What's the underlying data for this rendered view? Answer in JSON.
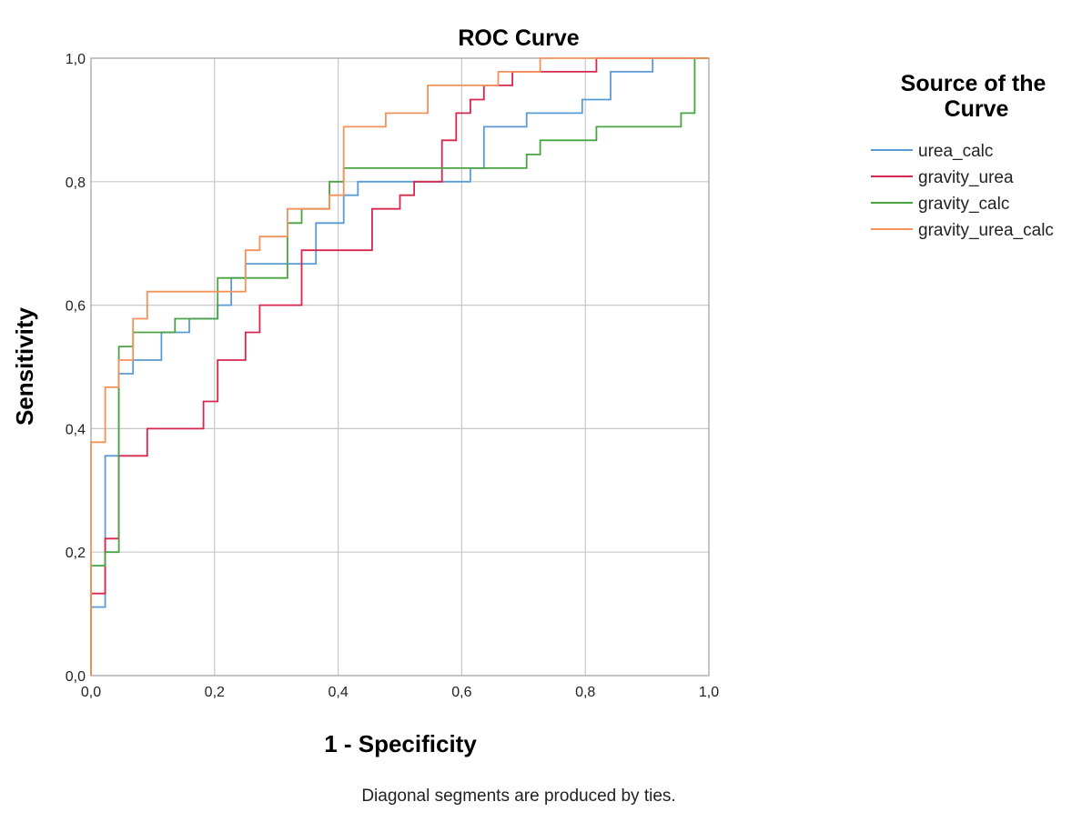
{
  "chart_data": {
    "type": "line",
    "title": "ROC Curve",
    "xlabel": "1 - Specificity",
    "ylabel": "Sensitivity",
    "xlim": [
      0,
      1
    ],
    "ylim": [
      0,
      1
    ],
    "xticks": [
      "0,0",
      "0,2",
      "0,4",
      "0,6",
      "0,8",
      "1,0"
    ],
    "yticks": [
      "0,0",
      "0,2",
      "0,4",
      "0,6",
      "0,8",
      "1,0"
    ],
    "grid": true,
    "legend_title": "Source of the Curve",
    "legend_position": "right",
    "footnote": "Diagonal segments are produced by ties.",
    "series": [
      {
        "name": "urea_calc",
        "color": "#5b9bd5",
        "points": [
          [
            0,
            0
          ],
          [
            0,
            0.111
          ],
          [
            0.023,
            0.111
          ],
          [
            0.023,
            0.356
          ],
          [
            0.045,
            0.356
          ],
          [
            0.045,
            0.489
          ],
          [
            0.068,
            0.489
          ],
          [
            0.068,
            0.511
          ],
          [
            0.114,
            0.511
          ],
          [
            0.114,
            0.556
          ],
          [
            0.159,
            0.556
          ],
          [
            0.159,
            0.578
          ],
          [
            0.205,
            0.578
          ],
          [
            0.205,
            0.6
          ],
          [
            0.227,
            0.6
          ],
          [
            0.227,
            0.644
          ],
          [
            0.25,
            0.644
          ],
          [
            0.25,
            0.667
          ],
          [
            0.364,
            0.667
          ],
          [
            0.364,
            0.733
          ],
          [
            0.409,
            0.733
          ],
          [
            0.409,
            0.778
          ],
          [
            0.432,
            0.778
          ],
          [
            0.432,
            0.8
          ],
          [
            0.614,
            0.8
          ],
          [
            0.614,
            0.822
          ],
          [
            0.636,
            0.822
          ],
          [
            0.636,
            0.889
          ],
          [
            0.705,
            0.889
          ],
          [
            0.705,
            0.911
          ],
          [
            0.795,
            0.911
          ],
          [
            0.795,
            0.933
          ],
          [
            0.841,
            0.933
          ],
          [
            0.841,
            0.978
          ],
          [
            0.909,
            0.978
          ],
          [
            0.909,
            1.0
          ],
          [
            1.0,
            1.0
          ]
        ]
      },
      {
        "name": "gravity_urea",
        "color": "#d6284d",
        "points": [
          [
            0,
            0
          ],
          [
            0,
            0.133
          ],
          [
            0.023,
            0.133
          ],
          [
            0.023,
            0.222
          ],
          [
            0.045,
            0.222
          ],
          [
            0.045,
            0.356
          ],
          [
            0.091,
            0.356
          ],
          [
            0.091,
            0.4
          ],
          [
            0.182,
            0.4
          ],
          [
            0.182,
            0.444
          ],
          [
            0.205,
            0.444
          ],
          [
            0.205,
            0.511
          ],
          [
            0.25,
            0.511
          ],
          [
            0.25,
            0.556
          ],
          [
            0.273,
            0.556
          ],
          [
            0.273,
            0.6
          ],
          [
            0.341,
            0.6
          ],
          [
            0.341,
            0.689
          ],
          [
            0.455,
            0.689
          ],
          [
            0.455,
            0.756
          ],
          [
            0.5,
            0.756
          ],
          [
            0.5,
            0.778
          ],
          [
            0.523,
            0.778
          ],
          [
            0.523,
            0.8
          ],
          [
            0.568,
            0.8
          ],
          [
            0.568,
            0.867
          ],
          [
            0.591,
            0.867
          ],
          [
            0.591,
            0.911
          ],
          [
            0.614,
            0.911
          ],
          [
            0.614,
            0.933
          ],
          [
            0.636,
            0.933
          ],
          [
            0.636,
            0.956
          ],
          [
            0.682,
            0.956
          ],
          [
            0.682,
            0.978
          ],
          [
            0.818,
            0.978
          ],
          [
            0.818,
            1.0
          ],
          [
            1.0,
            1.0
          ]
        ]
      },
      {
        "name": "gravity_calc",
        "color": "#4aa342",
        "points": [
          [
            0,
            0
          ],
          [
            0,
            0.178
          ],
          [
            0.023,
            0.178
          ],
          [
            0.023,
            0.2
          ],
          [
            0.045,
            0.2
          ],
          [
            0.045,
            0.533
          ],
          [
            0.068,
            0.533
          ],
          [
            0.068,
            0.556
          ],
          [
            0.136,
            0.556
          ],
          [
            0.136,
            0.578
          ],
          [
            0.205,
            0.578
          ],
          [
            0.205,
            0.644
          ],
          [
            0.318,
            0.644
          ],
          [
            0.318,
            0.733
          ],
          [
            0.341,
            0.733
          ],
          [
            0.341,
            0.756
          ],
          [
            0.386,
            0.756
          ],
          [
            0.386,
            0.8
          ],
          [
            0.409,
            0.8
          ],
          [
            0.409,
            0.822
          ],
          [
            0.705,
            0.822
          ],
          [
            0.705,
            0.844
          ],
          [
            0.727,
            0.844
          ],
          [
            0.727,
            0.867
          ],
          [
            0.818,
            0.867
          ],
          [
            0.818,
            0.889
          ],
          [
            0.955,
            0.889
          ],
          [
            0.955,
            0.911
          ],
          [
            0.977,
            0.911
          ],
          [
            0.977,
            1.0
          ],
          [
            1.0,
            1.0
          ]
        ]
      },
      {
        "name": "gravity_urea_calc",
        "color": "#f4925a",
        "points": [
          [
            0,
            0
          ],
          [
            0,
            0.378
          ],
          [
            0.023,
            0.378
          ],
          [
            0.023,
            0.467
          ],
          [
            0.045,
            0.467
          ],
          [
            0.045,
            0.511
          ],
          [
            0.068,
            0.511
          ],
          [
            0.068,
            0.578
          ],
          [
            0.091,
            0.578
          ],
          [
            0.091,
            0.622
          ],
          [
            0.25,
            0.622
          ],
          [
            0.25,
            0.689
          ],
          [
            0.273,
            0.689
          ],
          [
            0.273,
            0.711
          ],
          [
            0.318,
            0.711
          ],
          [
            0.318,
            0.756
          ],
          [
            0.386,
            0.756
          ],
          [
            0.386,
            0.778
          ],
          [
            0.409,
            0.778
          ],
          [
            0.409,
            0.889
          ],
          [
            0.477,
            0.889
          ],
          [
            0.477,
            0.911
          ],
          [
            0.545,
            0.911
          ],
          [
            0.545,
            0.956
          ],
          [
            0.659,
            0.956
          ],
          [
            0.659,
            0.978
          ],
          [
            0.727,
            0.978
          ],
          [
            0.727,
            1.0
          ],
          [
            1.0,
            1.0
          ]
        ]
      }
    ]
  }
}
